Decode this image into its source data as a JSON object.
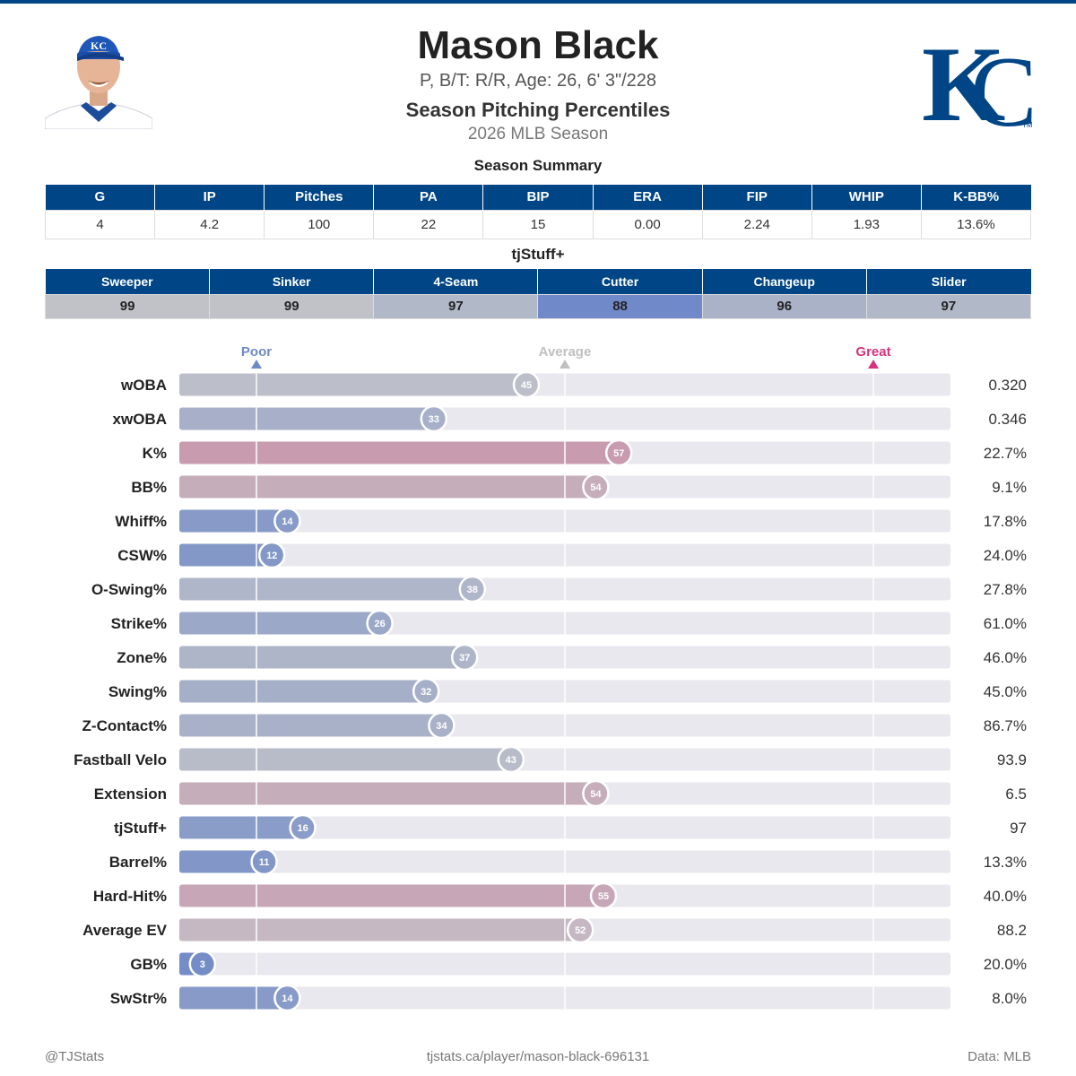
{
  "header": {
    "name": "Mason Black",
    "bio": "P, B/T: R/R, Age: 26, 6' 3\"/228",
    "subtitle": "Season Pitching Percentiles",
    "season": "2026 MLB Season"
  },
  "colors": {
    "team_blue": "#004687",
    "poor": "#6f8ac7",
    "average": "#c0c0c0",
    "great": "#d6337a",
    "track": "#e8e8ee"
  },
  "summary": {
    "title": "Season Summary",
    "headers": [
      "G",
      "IP",
      "Pitches",
      "PA",
      "BIP",
      "ERA",
      "FIP",
      "WHIP",
      "K-BB%"
    ],
    "values": [
      "4",
      "4.2",
      "100",
      "22",
      "15",
      "0.00",
      "2.24",
      "1.93",
      "13.6%"
    ]
  },
  "tjstuff": {
    "title": "tjStuff+",
    "headers": [
      "Sweeper",
      "Sinker",
      "4-Seam",
      "Cutter",
      "Changeup",
      "Slider"
    ],
    "values": [
      99,
      99,
      97,
      88,
      96,
      97
    ]
  },
  "chart_data": {
    "type": "bar",
    "orientation": "horizontal",
    "xlim": [
      0,
      100
    ],
    "markers": [
      {
        "label": "Poor",
        "value": 10
      },
      {
        "label": "Average",
        "value": 50
      },
      {
        "label": "Great",
        "value": 90
      }
    ],
    "categories": [
      "wOBA",
      "xwOBA",
      "K%",
      "BB%",
      "Whiff%",
      "CSW%",
      "O-Swing%",
      "Strike%",
      "Zone%",
      "Swing%",
      "Z-Contact%",
      "Fastball Velo",
      "Extension",
      "tjStuff+",
      "Barrel%",
      "Hard-Hit%",
      "Average EV",
      "GB%",
      "SwStr%"
    ],
    "percentiles": [
      45,
      33,
      57,
      54,
      14,
      12,
      38,
      26,
      37,
      32,
      34,
      43,
      54,
      16,
      11,
      55,
      52,
      3,
      14
    ],
    "stat_values": [
      "0.320",
      "0.346",
      "22.7%",
      "9.1%",
      "17.8%",
      "24.0%",
      "27.8%",
      "61.0%",
      "46.0%",
      "45.0%",
      "86.7%",
      "93.9",
      "6.5",
      "97",
      "13.3%",
      "40.0%",
      "88.2",
      "20.0%",
      "8.0%"
    ]
  },
  "footer": {
    "left": "@TJStats",
    "center": "tjstats.ca/player/mason-black-696131",
    "right": "Data: MLB"
  }
}
